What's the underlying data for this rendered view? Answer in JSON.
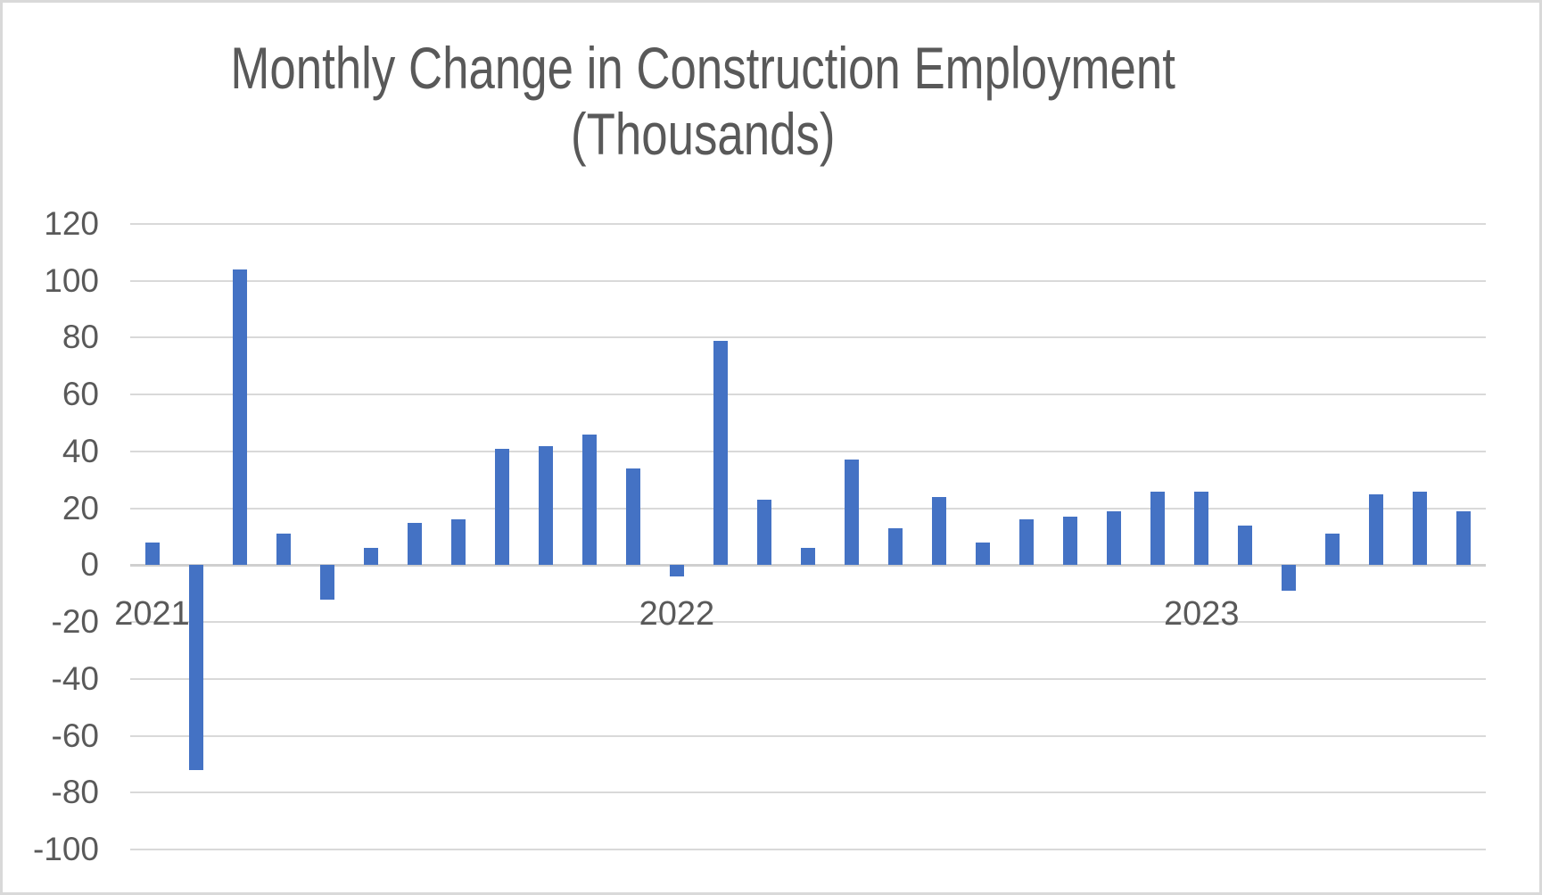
{
  "title": {
    "line1": "Monthly Change in Construction Employment",
    "line2": "(Thousands)"
  },
  "colors": {
    "bar": "#4472C4",
    "gridline": "#D9D9D9",
    "zero_axis": "#CFCFCF",
    "text": "#595959",
    "border": "#D9D9D9",
    "background": "#FFFFFF"
  },
  "chart_data": {
    "type": "bar",
    "title": "Monthly Change in Construction Employment (Thousands)",
    "xlabel": "",
    "ylabel": "",
    "ylim": [
      -100,
      120
    ],
    "ytick_interval": 20,
    "yticks": [
      120,
      100,
      80,
      60,
      40,
      20,
      0,
      -20,
      -40,
      -60,
      -80,
      -100
    ],
    "grid": true,
    "legend": false,
    "x": [
      "2021-01",
      "2021-02",
      "2021-03",
      "2021-04",
      "2021-05",
      "2021-06",
      "2021-07",
      "2021-08",
      "2021-09",
      "2021-10",
      "2021-11",
      "2021-12",
      "2022-01",
      "2022-02",
      "2022-03",
      "2022-04",
      "2022-05",
      "2022-06",
      "2022-07",
      "2022-08",
      "2022-09",
      "2022-10",
      "2022-11",
      "2022-12",
      "2023-01",
      "2023-02",
      "2023-03",
      "2023-04",
      "2023-05",
      "2023-06",
      "2023-07"
    ],
    "values": [
      8,
      -72,
      104,
      11,
      -12,
      6,
      15,
      16,
      41,
      42,
      46,
      34,
      -4,
      79,
      23,
      6,
      37,
      13,
      24,
      8,
      16,
      17,
      19,
      26,
      26,
      14,
      -9,
      11,
      25,
      26,
      19
    ],
    "x_axis_year_labels": [
      {
        "label": "2021",
        "month_index": 0
      },
      {
        "label": "2022",
        "month_index": 12
      },
      {
        "label": "2023",
        "month_index": 24
      }
    ]
  }
}
